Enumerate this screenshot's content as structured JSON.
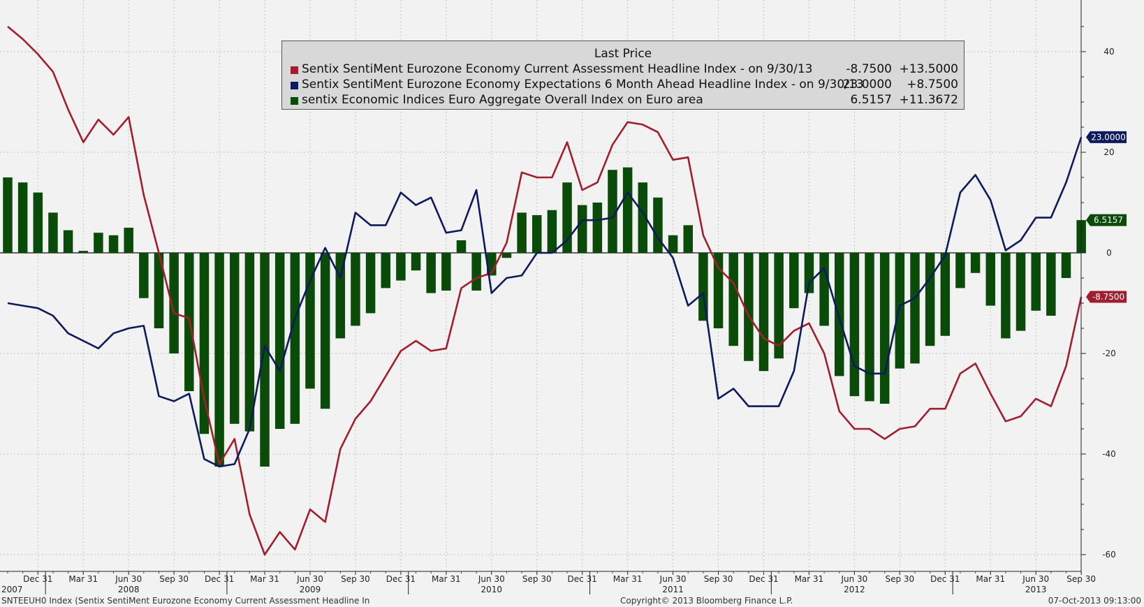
{
  "chart_data": {
    "type": "bar",
    "y_axis": {
      "ticks": [
        40,
        20,
        0,
        -20,
        -40,
        -60
      ],
      "ylim": [
        -64,
        50
      ],
      "side": "right",
      "grid": true
    },
    "x_axis": {
      "ticks": [
        {
          "label": "Dec 31",
          "i": 2
        },
        {
          "label": "Mar 31",
          "i": 5
        },
        {
          "label": "Jun 30",
          "i": 8
        },
        {
          "label": "Sep 30",
          "i": 11
        },
        {
          "label": "Dec 31",
          "i": 14
        },
        {
          "label": "Mar 31",
          "i": 17
        },
        {
          "label": "Jun 30",
          "i": 20
        },
        {
          "label": "Sep 30",
          "i": 23
        },
        {
          "label": "Dec 31",
          "i": 26
        },
        {
          "label": "Mar 31",
          "i": 29
        },
        {
          "label": "Jun 30",
          "i": 32
        },
        {
          "label": "Sep 30",
          "i": 35
        },
        {
          "label": "Dec 31",
          "i": 38
        },
        {
          "label": "Mar 31",
          "i": 41
        },
        {
          "label": "Jun 30",
          "i": 44
        },
        {
          "label": "Sep 30",
          "i": 47
        },
        {
          "label": "Dec 31",
          "i": 50
        },
        {
          "label": "Mar 31",
          "i": 53
        },
        {
          "label": "Jun 30",
          "i": 56
        },
        {
          "label": "Sep 30",
          "i": 59
        },
        {
          "label": "Dec 31",
          "i": 62
        },
        {
          "label": "Mar 31",
          "i": 65
        },
        {
          "label": "Jun 30",
          "i": 68
        },
        {
          "label": "Sep 30",
          "i": 71
        }
      ],
      "years": [
        {
          "label": "2007",
          "i": 0.5
        },
        {
          "label": "2008",
          "i": 8
        },
        {
          "label": "2009",
          "i": 20
        },
        {
          "label": "2010",
          "i": 32
        },
        {
          "label": "2011",
          "i": 44
        },
        {
          "label": "2012",
          "i": 56
        },
        {
          "label": "2013",
          "i": 68
        }
      ],
      "year_separators": [
        2.5,
        14.5,
        26.5,
        38.5,
        50.5,
        62.5
      ]
    },
    "series": [
      {
        "name": "Sentix SentiMent Eurozone Economy Current Assessment Headline Index -  on 9/30/13",
        "type": "line",
        "color": "#a01e2e",
        "values": [
          45,
          42.5,
          39.5,
          36,
          28.5,
          22,
          26.5,
          23.5,
          27,
          11.5,
          0,
          -12,
          -13,
          -29,
          -42,
          -37,
          -52,
          -60,
          -55.5,
          -59,
          -51,
          -53.5,
          -39,
          -33,
          -29.5,
          -24.5,
          -19.5,
          -17.5,
          -19.5,
          -19,
          -7,
          -5,
          -4,
          2,
          16,
          15,
          15,
          22,
          12.5,
          14,
          21.5,
          26,
          25.5,
          24,
          18.5,
          19,
          3.5,
          -3,
          -6,
          -12.5,
          -17,
          -18.5,
          -15.5,
          -14,
          -20,
          -31.5,
          -35,
          -35,
          -37,
          -35,
          -34.5,
          -31,
          -31,
          -24,
          -22,
          -28,
          -33.5,
          -32.5,
          -29,
          -30.5,
          -22.5,
          -8.75
        ]
      },
      {
        "name": "Sentix SentiMent Eurozone Economy Expectations 6 Month Ahead Headline Index -  on 9/30/13",
        "type": "line",
        "color": "#0e1a5b",
        "values": [
          -10,
          -10.5,
          -11,
          -12.5,
          -16,
          -17.5,
          -19,
          -16,
          -15,
          -14.5,
          -28.5,
          -29.5,
          -28,
          -41,
          -42.5,
          -42,
          -35,
          -18.5,
          -23.5,
          -13,
          -5.5,
          1,
          -5,
          8,
          5.5,
          5.5,
          12,
          9.5,
          11,
          4,
          4.5,
          12.5,
          -8,
          -5,
          -4.5,
          0,
          0,
          2.5,
          6.5,
          6.5,
          7,
          12,
          8,
          3,
          -1,
          -10.5,
          -8,
          -29,
          -27,
          -30.5,
          -30.5,
          -30.5,
          -23.5,
          -6,
          -3,
          -13,
          -22.5,
          -24,
          -24,
          -10.5,
          -9,
          -5,
          -0.5,
          12,
          15.5,
          10.5,
          0.5,
          2.5,
          7,
          7,
          14,
          23.0
        ]
      },
      {
        "name": "sentix Economic Indices Euro Aggregate Overall Index on Euro area",
        "type": "bar",
        "color": "#0a4b0a",
        "values": [
          15,
          14,
          12,
          8,
          4.5,
          0.4,
          4,
          3.5,
          5,
          -9,
          -15,
          -20,
          -27.5,
          -36,
          -42.5,
          -34,
          -35.5,
          -42.5,
          -35,
          -34,
          -27,
          -31,
          -17,
          -14.5,
          -12,
          -7,
          -5.5,
          -3.5,
          -8,
          -7.5,
          2.5,
          -7.5,
          -4.5,
          -1,
          8,
          7.5,
          8.5,
          14,
          9.5,
          10,
          16.5,
          17,
          14,
          11,
          3.5,
          5.5,
          -13.5,
          -15,
          -18.5,
          -21.5,
          -23.5,
          -21,
          -11,
          -8,
          -14.5,
          -24.5,
          -28.5,
          -29.5,
          -30,
          -23,
          -22,
          -18.5,
          -16.5,
          -7,
          -4,
          -10.5,
          -17,
          -15.5,
          -11.5,
          -12.5,
          -5,
          6.5157
        ]
      }
    ],
    "last_labels": [
      {
        "text": "23.0000",
        "value": 23.0,
        "color": "#0e1a5b"
      },
      {
        "text": "6.5157",
        "value": 6.5157,
        "color": "#0a4b0a"
      },
      {
        "text": "-8.7500",
        "value": -8.75,
        "color": "#a01e2e"
      }
    ]
  },
  "legend": {
    "title": "Last Price",
    "rows": [
      {
        "color": "#a01e2e",
        "name": "Sentix SentiMent Eurozone Economy Current Assessment Headline Index -  on 9/30/13",
        "last": "-8.7500",
        "change": "+13.5000"
      },
      {
        "color": "#0e1a5b",
        "name": "Sentix SentiMent Eurozone Economy Expectations 6 Month Ahead Headline Index -  on 9/30/13",
        "last": "23.0000",
        "change": "+8.7500"
      },
      {
        "color": "#0a4b0a",
        "name": "sentix Economic Indices Euro Aggregate Overall Index on Euro area",
        "last": "6.5157",
        "change": "+11.3672"
      }
    ]
  },
  "footer": {
    "left": "SNTEEUH0 Index (Sentix SentiMent Eurozone Economy Current Assessment Headline In",
    "center": "Copyright© 2013 Bloomberg Finance L.P.",
    "right": "07-Oct-2013 09:13:00"
  }
}
